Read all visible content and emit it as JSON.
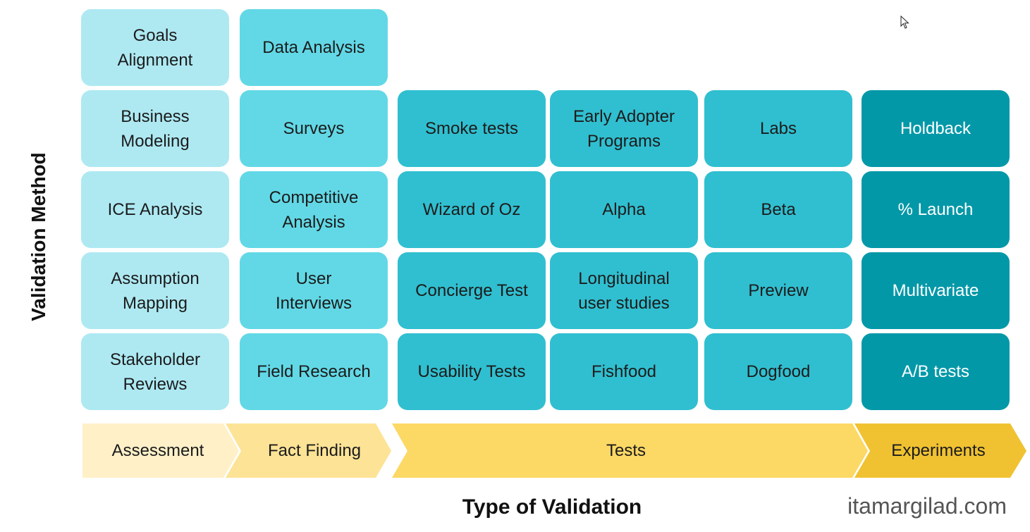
{
  "axis": {
    "y_label": "Validation Method",
    "x_label": "Type of Validation"
  },
  "methods": {
    "assessment": [
      "Goals\nAlignment",
      "Business\nModeling",
      "ICE Analysis",
      "Assumption\nMapping",
      "Stakeholder\nReviews"
    ],
    "fact_finding": [
      "Data Analysis",
      "Surveys",
      "Competitive\nAnalysis",
      "User\nInterviews",
      "Field Research"
    ],
    "tests_a": [
      "Smoke tests",
      "Wizard of Oz",
      "Concierge Test",
      "Usability Tests"
    ],
    "tests_b": [
      "Early Adopter\nPrograms",
      "Alpha",
      "Longitudinal\nuser studies",
      "Fishfood"
    ],
    "tests_c": [
      "Labs",
      "Beta",
      "Preview",
      "Dogfood"
    ],
    "experiments": [
      "Holdback",
      "% Launch",
      "Multivariate",
      "A/B tests"
    ]
  },
  "phases": [
    "Assessment",
    "Fact Finding",
    "Tests",
    "Experiments"
  ],
  "colors": {
    "assessment": "#aee9f2",
    "fact_finding": "#62d8e6",
    "tests": "#30bfd0",
    "experiments": "#0398a8",
    "phase_assessment": "#fff0c8",
    "phase_fact_finding": "#fde396",
    "phase_tests": "#fcd865",
    "phase_experiments": "#f0c232"
  },
  "watermark": "itamargilad.com",
  "icons": {
    "cursor": "mouse-pointer-icon"
  }
}
